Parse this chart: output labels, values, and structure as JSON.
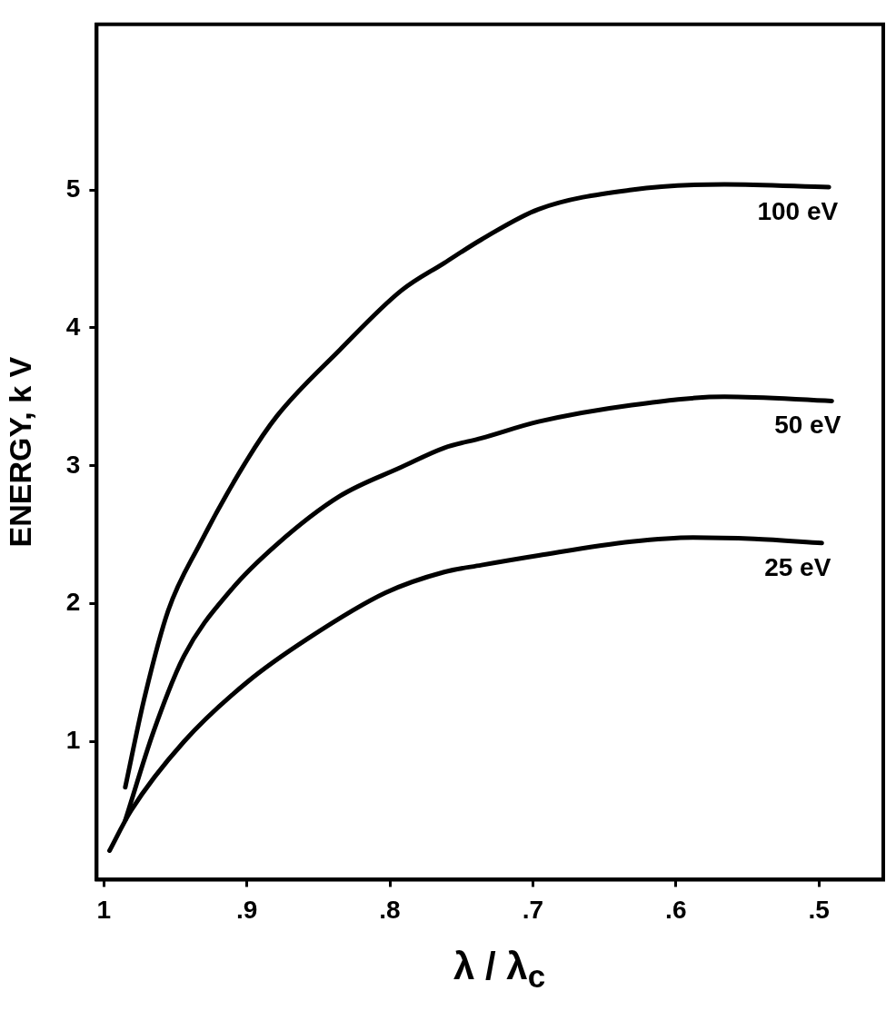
{
  "chart_data": {
    "type": "line",
    "xlabel": "λ / λ$_{c}$",
    "ylabel": "ENERGY, k V",
    "xlim": [
      1.005,
      0.455
    ],
    "ylim": [
      0,
      6.2
    ],
    "xticks": [
      1,
      {
        "value": 0.9,
        "label": ".9"
      },
      {
        "value": 0.8,
        "label": ".8"
      },
      {
        "value": 0.7,
        "label": ".7"
      },
      {
        "value": 0.6,
        "label": ".6"
      },
      {
        "value": 0.5,
        "label": ".5"
      }
    ],
    "yticks": [
      1,
      2,
      3,
      4,
      5
    ],
    "grid": false,
    "legend": false,
    "marker": "none",
    "line_style": "solid",
    "series": [
      {
        "name": "100 eV",
        "color": "#000000",
        "x": [
          0.985,
          0.972,
          0.955,
          0.933,
          0.9,
          0.879,
          0.835,
          0.792,
          0.762,
          0.736,
          0.696,
          0.631,
          0.566,
          0.493
        ],
        "values": [
          0.67,
          1.3,
          1.95,
          2.43,
          3.04,
          3.36,
          3.84,
          4.27,
          4.47,
          4.64,
          4.86,
          5.0,
          5.04,
          5.02
        ]
      },
      {
        "name": "50 eV",
        "color": "#000000",
        "x": [
          0.985,
          0.965,
          0.944,
          0.911,
          0.879,
          0.835,
          0.792,
          0.762,
          0.736,
          0.696,
          0.631,
          0.566,
          0.491
        ],
        "values": [
          0.43,
          1.08,
          1.62,
          2.1,
          2.43,
          2.78,
          2.99,
          3.13,
          3.2,
          3.32,
          3.44,
          3.5,
          3.47
        ]
      },
      {
        "name": "25 eV",
        "color": "#000000",
        "x": [
          0.996,
          0.981,
          0.944,
          0.9,
          0.857,
          0.803,
          0.762,
          0.736,
          0.696,
          0.631,
          0.588,
          0.545,
          0.498
        ],
        "values": [
          0.21,
          0.5,
          1.0,
          1.43,
          1.75,
          2.08,
          2.23,
          2.28,
          2.35,
          2.45,
          2.48,
          2.47,
          2.44
        ]
      }
    ]
  }
}
